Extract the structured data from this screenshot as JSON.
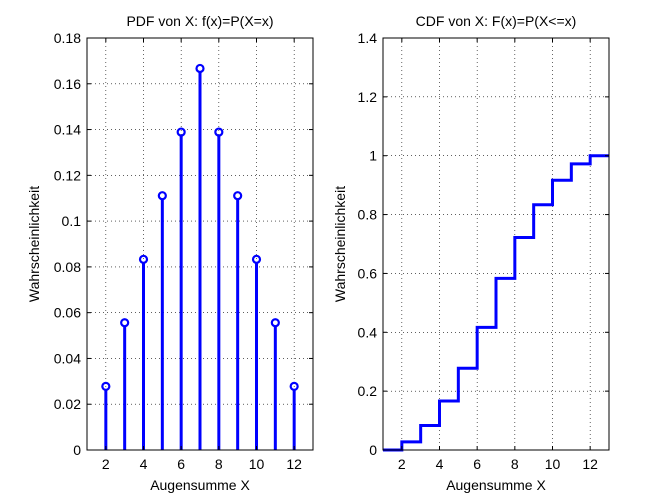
{
  "chart_data": [
    {
      "type": "stem",
      "title": "PDF von X: f(x)=P(X=x)",
      "xlabel": "Augensumme X",
      "ylabel": "Wahrscheinlichkeit",
      "xlim": [
        1,
        13
      ],
      "ylim": [
        0,
        0.18
      ],
      "xticks": [
        2,
        4,
        6,
        8,
        10,
        12
      ],
      "xtick_labels": [
        "2",
        "4",
        "6",
        "8",
        "10",
        "12"
      ],
      "yticks": [
        0,
        0.02,
        0.04,
        0.06,
        0.08,
        0.1,
        0.12,
        0.14,
        0.16,
        0.18
      ],
      "ytick_labels": [
        "0",
        "0.02",
        "0.04",
        "0.06",
        "0.08",
        "0.1",
        "0.12",
        "0.14",
        "0.16",
        "0.18"
      ],
      "grid": true,
      "x": [
        2,
        3,
        4,
        5,
        6,
        7,
        8,
        9,
        10,
        11,
        12
      ],
      "y": [
        0.0278,
        0.0556,
        0.0833,
        0.1111,
        0.1389,
        0.1667,
        0.1389,
        0.1111,
        0.0833,
        0.0556,
        0.0278
      ],
      "color": "#0000ff"
    },
    {
      "type": "stairs",
      "title": "CDF von X: F(x)=P(X<=x)",
      "xlabel": "Augensumme X",
      "ylabel": "Wahrscheinlichkeit",
      "xlim": [
        1,
        13
      ],
      "ylim": [
        0,
        1.4
      ],
      "xticks": [
        2,
        4,
        6,
        8,
        10,
        12
      ],
      "xtick_labels": [
        "2",
        "4",
        "6",
        "8",
        "10",
        "12"
      ],
      "yticks": [
        0,
        0.2,
        0.4,
        0.6,
        0.8,
        1,
        1.2,
        1.4
      ],
      "ytick_labels": [
        "0",
        "0.2",
        "0.4",
        "0.6",
        "0.8",
        "1",
        "1.2",
        "1.4"
      ],
      "grid": true,
      "x": [
        1,
        2,
        3,
        4,
        5,
        6,
        7,
        8,
        9,
        10,
        11,
        12,
        13
      ],
      "y": [
        0,
        0.0278,
        0.0833,
        0.1667,
        0.2778,
        0.4167,
        0.5833,
        0.7222,
        0.8333,
        0.9167,
        0.9722,
        1.0,
        1.0
      ],
      "color": "#0000ff"
    }
  ]
}
